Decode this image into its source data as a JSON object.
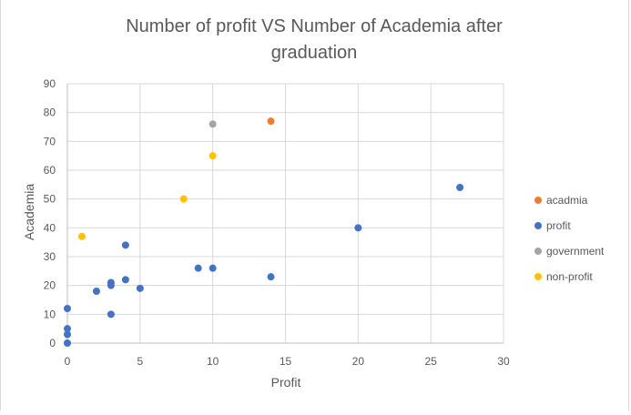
{
  "chart_data": {
    "type": "scatter",
    "title_line1": "Number of profit VS Number of Academia after",
    "title_line2": "graduation",
    "xlabel": "Profit",
    "ylabel": "Academia",
    "xlim": [
      0,
      30
    ],
    "ylim": [
      0,
      90
    ],
    "x_ticks": [
      0,
      5,
      10,
      15,
      20,
      25,
      30
    ],
    "y_ticks": [
      0,
      10,
      20,
      30,
      40,
      50,
      60,
      70,
      80,
      90
    ],
    "grid": true,
    "legend_position": "right",
    "series": [
      {
        "name": "acadmia",
        "color": "#ed7d31",
        "points": [
          [
            14,
            77
          ]
        ]
      },
      {
        "name": "profit",
        "color": "#4472c4",
        "points": [
          [
            27,
            54
          ],
          [
            20,
            40
          ],
          [
            4,
            34
          ],
          [
            9,
            26
          ],
          [
            10,
            26
          ],
          [
            14,
            23
          ],
          [
            4,
            22
          ],
          [
            3,
            21
          ],
          [
            3,
            20
          ],
          [
            5,
            19
          ],
          [
            2,
            18
          ],
          [
            0,
            12
          ],
          [
            3,
            10
          ],
          [
            0,
            5
          ],
          [
            0,
            3
          ],
          [
            0,
            0
          ]
        ]
      },
      {
        "name": "government",
        "color": "#a5a5a5",
        "points": [
          [
            10,
            76
          ]
        ]
      },
      {
        "name": "non-profit",
        "color": "#ffc000",
        "points": [
          [
            10,
            65
          ],
          [
            8,
            50
          ],
          [
            1,
            37
          ]
        ]
      }
    ]
  }
}
